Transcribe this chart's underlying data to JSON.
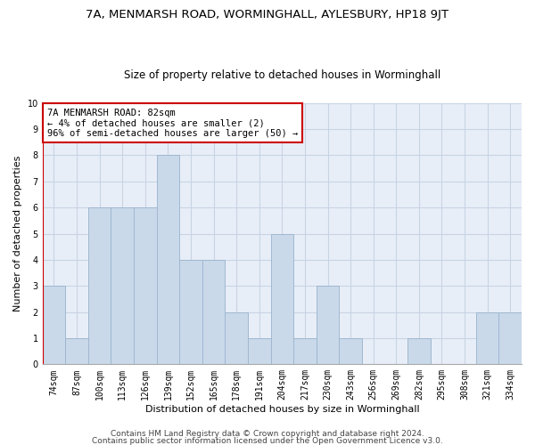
{
  "title": "7A, MENMARSH ROAD, WORMINGHALL, AYLESBURY, HP18 9JT",
  "subtitle": "Size of property relative to detached houses in Worminghall",
  "xlabel": "Distribution of detached houses by size in Worminghall",
  "ylabel": "Number of detached properties",
  "categories": [
    "74sqm",
    "87sqm",
    "100sqm",
    "113sqm",
    "126sqm",
    "139sqm",
    "152sqm",
    "165sqm",
    "178sqm",
    "191sqm",
    "204sqm",
    "217sqm",
    "230sqm",
    "243sqm",
    "256sqm",
    "269sqm",
    "282sqm",
    "295sqm",
    "308sqm",
    "321sqm",
    "334sqm"
  ],
  "values": [
    3,
    1,
    6,
    6,
    6,
    8,
    4,
    4,
    2,
    1,
    5,
    1,
    3,
    1,
    0,
    0,
    1,
    0,
    0,
    2,
    2
  ],
  "bar_color": "#c9d9ea",
  "bar_edge_color": "#a0b8d0",
  "annotation_box_text": "7A MENMARSH ROAD: 82sqm\n← 4% of detached houses are smaller (2)\n96% of semi-detached houses are larger (50) →",
  "annotation_box_color": "#cc0000",
  "vertical_line_color": "#cc0000",
  "ylim": [
    0,
    10
  ],
  "yticks": [
    0,
    1,
    2,
    3,
    4,
    5,
    6,
    7,
    8,
    9,
    10
  ],
  "grid_color": "#c8d4e4",
  "background_color": "#e8eef8",
  "footer1": "Contains HM Land Registry data © Crown copyright and database right 2024.",
  "footer2": "Contains public sector information licensed under the Open Government Licence v3.0.",
  "title_fontsize": 9.5,
  "subtitle_fontsize": 8.5,
  "xlabel_fontsize": 8,
  "ylabel_fontsize": 8,
  "tick_fontsize": 7,
  "annotation_fontsize": 7.5,
  "footer_fontsize": 6.5
}
